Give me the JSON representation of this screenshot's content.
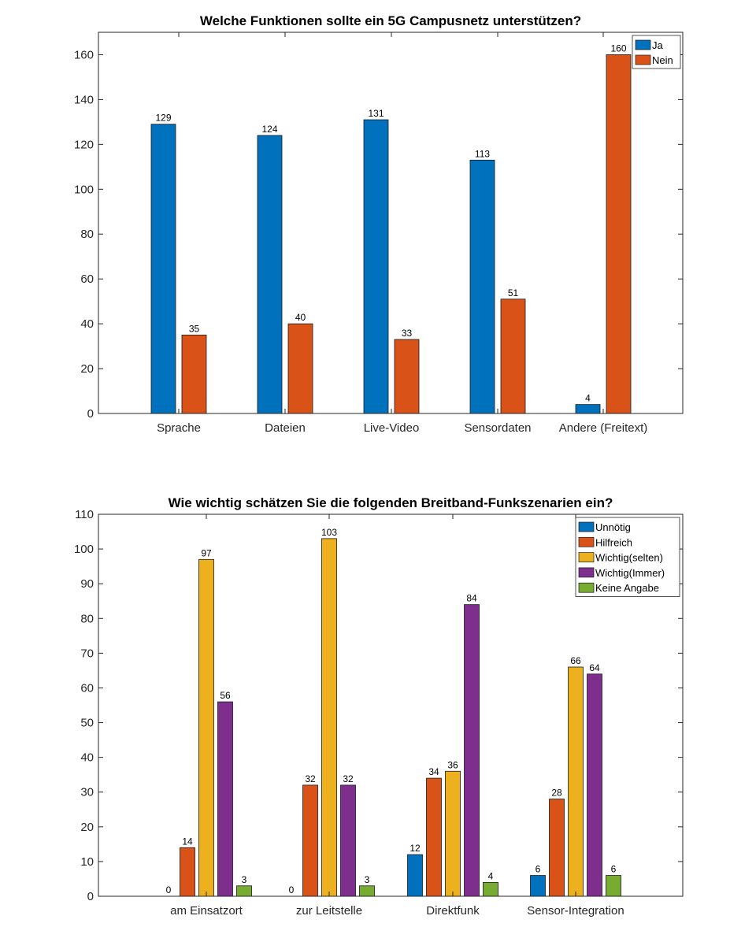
{
  "chart_data": [
    {
      "type": "bar",
      "title": "Welche Funktionen sollte ein 5G Campusnetz unterstützen?",
      "xlabel": "",
      "ylabel": "",
      "ylim": [
        0,
        170
      ],
      "yticks": [
        0,
        20,
        40,
        60,
        80,
        100,
        120,
        140,
        160
      ],
      "categories": [
        "Sprache",
        "Dateien",
        "Live-Video",
        "Sensordaten",
        "Andere (Freitext)"
      ],
      "series": [
        {
          "name": "Ja",
          "color": "#0072BD",
          "values": [
            129,
            124,
            131,
            113,
            4
          ]
        },
        {
          "name": "Nein",
          "color": "#D95319",
          "values": [
            35,
            40,
            33,
            51,
            160
          ]
        }
      ],
      "legend_position": "top-right",
      "grid": false
    },
    {
      "type": "bar",
      "title": "Wie wichtig schätzen Sie die folgenden Breitband-Funkszenarien ein?",
      "xlabel": "",
      "ylabel": "",
      "ylim": [
        0,
        110
      ],
      "yticks": [
        0,
        10,
        20,
        30,
        40,
        50,
        60,
        70,
        80,
        90,
        100,
        110
      ],
      "categories": [
        "am Einsatzort",
        "zur Leitstelle",
        "Direktfunk",
        "Sensor-Integration"
      ],
      "series": [
        {
          "name": "Unnötig",
          "color": "#0072BD",
          "values": [
            0,
            0,
            12,
            6
          ]
        },
        {
          "name": "Hilfreich",
          "color": "#D95319",
          "values": [
            14,
            32,
            34,
            28
          ]
        },
        {
          "name": "Wichtig(selten)",
          "color": "#EDB120",
          "values": [
            97,
            103,
            36,
            66
          ]
        },
        {
          "name": "Wichtig(Immer)",
          "color": "#7E2F8E",
          "values": [
            56,
            32,
            84,
            64
          ]
        },
        {
          "name": "Keine Angabe",
          "color": "#77AC30",
          "values": [
            3,
            3,
            4,
            6
          ]
        }
      ],
      "legend_position": "top-right",
      "grid": false
    }
  ]
}
